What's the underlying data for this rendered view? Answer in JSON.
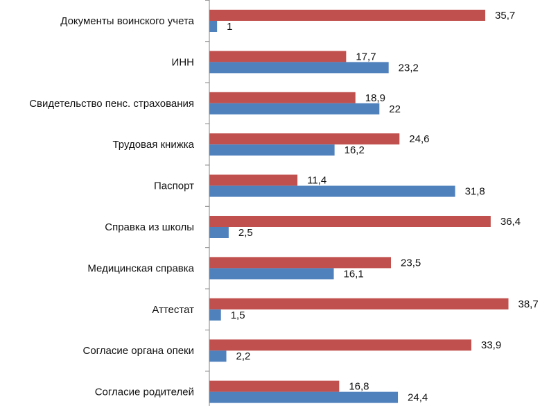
{
  "chart_data": {
    "type": "bar",
    "orientation": "horizontal",
    "title": "",
    "xlabel": "",
    "ylabel": "",
    "xlim": [
      0,
      40
    ],
    "grid": false,
    "legend": "none",
    "categories": [
      "Документы воинского учета",
      "ИНН",
      "Свидетельство пенс. страхования",
      "Трудовая книжка",
      "Паспорт",
      "Справка из школы",
      "Медицинская справка",
      "Аттестат",
      "Согласие органа опеки",
      "Согласие родителей"
    ],
    "series": [
      {
        "name": "red",
        "color": "#C0504D",
        "values": [
          35.7,
          17.7,
          18.9,
          24.6,
          11.4,
          36.4,
          23.5,
          38.7,
          33.9,
          16.8
        ],
        "labels": [
          "35,7",
          "17,7",
          "18,9",
          "24,6",
          "11,4",
          "36,4",
          "23,5",
          "38,7",
          "33,9",
          "16,8"
        ]
      },
      {
        "name": "blue",
        "color": "#4F81BD",
        "values": [
          1,
          23.2,
          22,
          16.2,
          31.8,
          2.5,
          16.1,
          1.5,
          2.2,
          24.4
        ],
        "labels": [
          "1",
          "23,2",
          "22",
          "16,2",
          "31,8",
          "2,5",
          "16,1",
          "1,5",
          "2,2",
          "24,4"
        ]
      }
    ]
  }
}
